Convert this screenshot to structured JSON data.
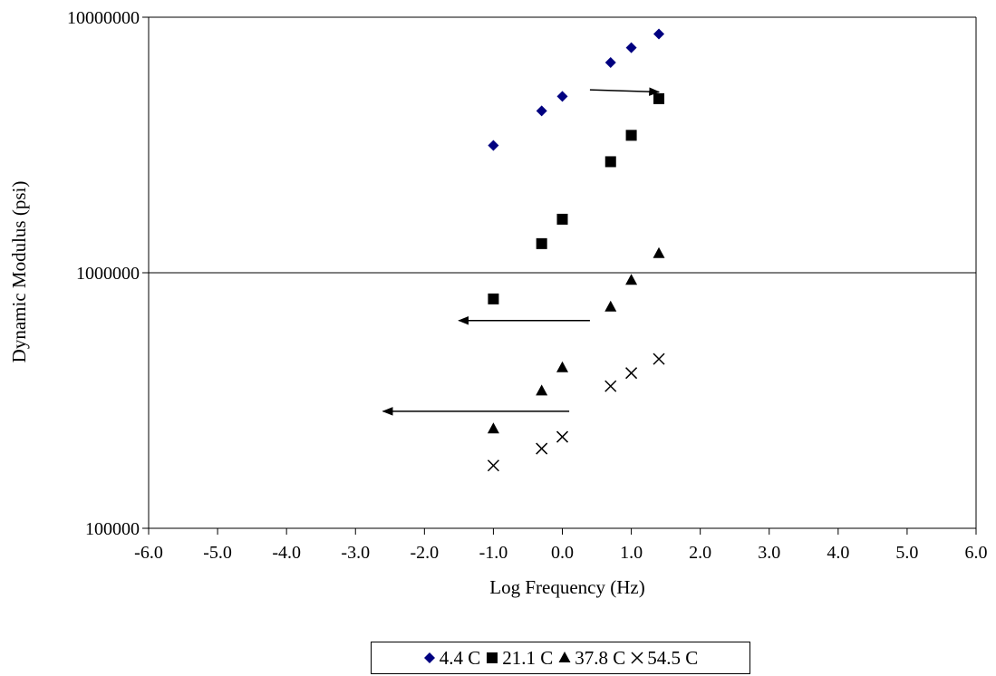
{
  "chart_data": {
    "type": "scatter",
    "xlabel": "Log Frequency (Hz)",
    "ylabel": "Dynamic Modulus (psi)",
    "xlim": [
      -6,
      6
    ],
    "ylim": [
      100000,
      10000000
    ],
    "yscale": "log",
    "x_ticks": [
      "-6.0",
      "-5.0",
      "-4.0",
      "-3.0",
      "-2.0",
      "-1.0",
      "0.0",
      "1.0",
      "2.0",
      "3.0",
      "4.0",
      "5.0",
      "6.0"
    ],
    "y_ticks": [
      "100000",
      "1000000",
      "10000000"
    ],
    "grid": "horizontal major lines",
    "legend_position": "bottom",
    "series": [
      {
        "name": "4.4 C",
        "marker": "diamond",
        "color": "#000080",
        "x": [
          -1.0,
          -0.3,
          0.0,
          0.7,
          1.0,
          1.4
        ],
        "y": [
          3150000,
          4300000,
          4900000,
          6650000,
          7600000,
          8600000
        ]
      },
      {
        "name": "21.1 C",
        "marker": "square",
        "color": "#000000",
        "x": [
          -1.0,
          -0.3,
          0.0,
          0.7,
          1.0,
          1.4
        ],
        "y": [
          790000,
          1300000,
          1620000,
          2720000,
          3450000,
          4800000
        ]
      },
      {
        "name": "37.8 C",
        "marker": "triangle",
        "color": "#000000",
        "x": [
          -1.0,
          -0.3,
          0.0,
          0.7,
          1.0,
          1.4
        ],
        "y": [
          245000,
          345000,
          425000,
          735000,
          935000,
          1190000
        ]
      },
      {
        "name": "54.5 C",
        "marker": "x",
        "color": "#000000",
        "x": [
          -1.0,
          -0.3,
          0.0,
          0.7,
          1.0,
          1.4
        ],
        "y": [
          176000,
          205000,
          228000,
          360000,
          405000,
          460000
        ]
      }
    ],
    "annotations": [
      {
        "type": "arrow",
        "from": [
          0.4,
          5200000
        ],
        "to": [
          1.4,
          5100000
        ]
      },
      {
        "type": "arrow",
        "from": [
          0.4,
          650000
        ],
        "to": [
          -1.5,
          650000
        ]
      },
      {
        "type": "arrow",
        "from": [
          0.1,
          287000
        ],
        "to": [
          -2.6,
          287000
        ]
      }
    ]
  }
}
